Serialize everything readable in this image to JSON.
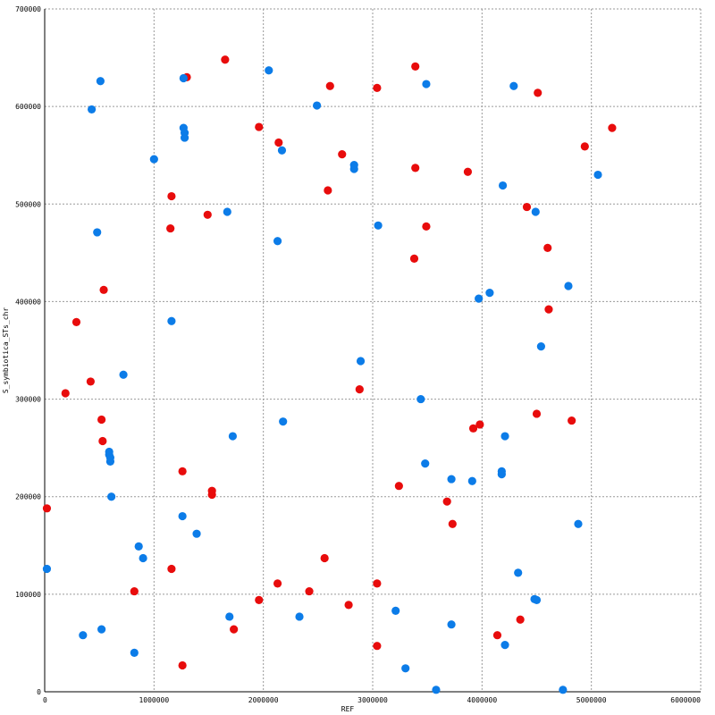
{
  "chart_data": {
    "type": "scatter",
    "xlabel": "REF",
    "ylabel": "S_symbiotica_STs_chr",
    "xlim": [
      0,
      6000000
    ],
    "ylim": [
      0,
      700000
    ],
    "x_ticks": [
      "0",
      "1000000",
      "2000000",
      "3000000",
      "4000000",
      "5000000",
      "6000000"
    ],
    "y_ticks": [
      "0",
      "100000",
      "200000",
      "300000",
      "400000",
      "500000",
      "600000",
      "700000"
    ],
    "grid": true,
    "colors": {
      "red": "#e80c0c",
      "blue": "#0c7ce8"
    },
    "series": [
      {
        "color": "#e80c0c",
        "points": [
          [
            1650000,
            648000
          ],
          [
            3390000,
            641000
          ],
          [
            1300000,
            630000
          ],
          [
            2610000,
            621000
          ],
          [
            3040000,
            619000
          ],
          [
            4510000,
            614000
          ],
          [
            1960000,
            579000
          ],
          [
            5190000,
            578000
          ],
          [
            2140000,
            563000
          ],
          [
            4940000,
            559000
          ],
          [
            2720000,
            551000
          ],
          [
            3390000,
            537000
          ],
          [
            3870000,
            533000
          ],
          [
            1160000,
            508000
          ],
          [
            2590000,
            514000
          ],
          [
            4410000,
            497000
          ],
          [
            1490000,
            489000
          ],
          [
            1150000,
            475000
          ],
          [
            3490000,
            477000
          ],
          [
            4600000,
            455000
          ],
          [
            3380000,
            444000
          ],
          [
            540000,
            412000
          ],
          [
            4610000,
            392000
          ],
          [
            290000,
            379000
          ],
          [
            2880000,
            310000
          ],
          [
            420000,
            318000
          ],
          [
            190000,
            306000
          ],
          [
            520000,
            279000
          ],
          [
            4500000,
            285000
          ],
          [
            4820000,
            278000
          ],
          [
            3980000,
            274000
          ],
          [
            3920000,
            270000
          ],
          [
            530000,
            257000
          ],
          [
            1260000,
            226000
          ],
          [
            3240000,
            211000
          ],
          [
            1530000,
            206000
          ],
          [
            1530000,
            202000
          ],
          [
            3680000,
            195000
          ],
          [
            3730000,
            172000
          ],
          [
            20000,
            188000
          ],
          [
            2560000,
            137000
          ],
          [
            1160000,
            126000
          ],
          [
            2130000,
            111000
          ],
          [
            3040000,
            111000
          ],
          [
            2420000,
            103000
          ],
          [
            820000,
            103000
          ],
          [
            1960000,
            94000
          ],
          [
            2780000,
            89000
          ],
          [
            4350000,
            74000
          ],
          [
            1730000,
            64000
          ],
          [
            4140000,
            58000
          ],
          [
            3040000,
            47000
          ],
          [
            1260000,
            27000
          ]
        ]
      },
      {
        "color": "#0c7ce8",
        "points": [
          [
            2050000,
            637000
          ],
          [
            1270000,
            629000
          ],
          [
            510000,
            626000
          ],
          [
            3490000,
            623000
          ],
          [
            4290000,
            621000
          ],
          [
            430000,
            597000
          ],
          [
            2490000,
            601000
          ],
          [
            1270000,
            578000
          ],
          [
            1280000,
            573000
          ],
          [
            1280000,
            568000
          ],
          [
            2170000,
            555000
          ],
          [
            1000000,
            546000
          ],
          [
            2830000,
            540000
          ],
          [
            2830000,
            536000
          ],
          [
            5060000,
            530000
          ],
          [
            4190000,
            519000
          ],
          [
            1670000,
            492000
          ],
          [
            4490000,
            492000
          ],
          [
            3050000,
            478000
          ],
          [
            480000,
            471000
          ],
          [
            2130000,
            462000
          ],
          [
            4790000,
            416000
          ],
          [
            4070000,
            409000
          ],
          [
            3970000,
            403000
          ],
          [
            1160000,
            380000
          ],
          [
            4540000,
            354000
          ],
          [
            2890000,
            339000
          ],
          [
            720000,
            325000
          ],
          [
            3440000,
            300000
          ],
          [
            1720000,
            262000
          ],
          [
            4210000,
            262000
          ],
          [
            2180000,
            277000
          ],
          [
            590000,
            246000
          ],
          [
            590000,
            243000
          ],
          [
            600000,
            240000
          ],
          [
            600000,
            236000
          ],
          [
            3480000,
            234000
          ],
          [
            3720000,
            218000
          ],
          [
            3910000,
            216000
          ],
          [
            4180000,
            226000
          ],
          [
            4180000,
            223000
          ],
          [
            610000,
            200000
          ],
          [
            1260000,
            180000
          ],
          [
            4880000,
            172000
          ],
          [
            1390000,
            162000
          ],
          [
            860000,
            149000
          ],
          [
            900000,
            137000
          ],
          [
            20000,
            126000
          ],
          [
            4330000,
            122000
          ],
          [
            4480000,
            95000
          ],
          [
            4500000,
            94000
          ],
          [
            3210000,
            83000
          ],
          [
            1690000,
            77000
          ],
          [
            2330000,
            77000
          ],
          [
            3720000,
            69000
          ],
          [
            520000,
            64000
          ],
          [
            350000,
            58000
          ],
          [
            4210000,
            48000
          ],
          [
            820000,
            40000
          ],
          [
            3300000,
            24000
          ],
          [
            3580000,
            2000
          ],
          [
            4740000,
            2000
          ]
        ]
      }
    ]
  }
}
